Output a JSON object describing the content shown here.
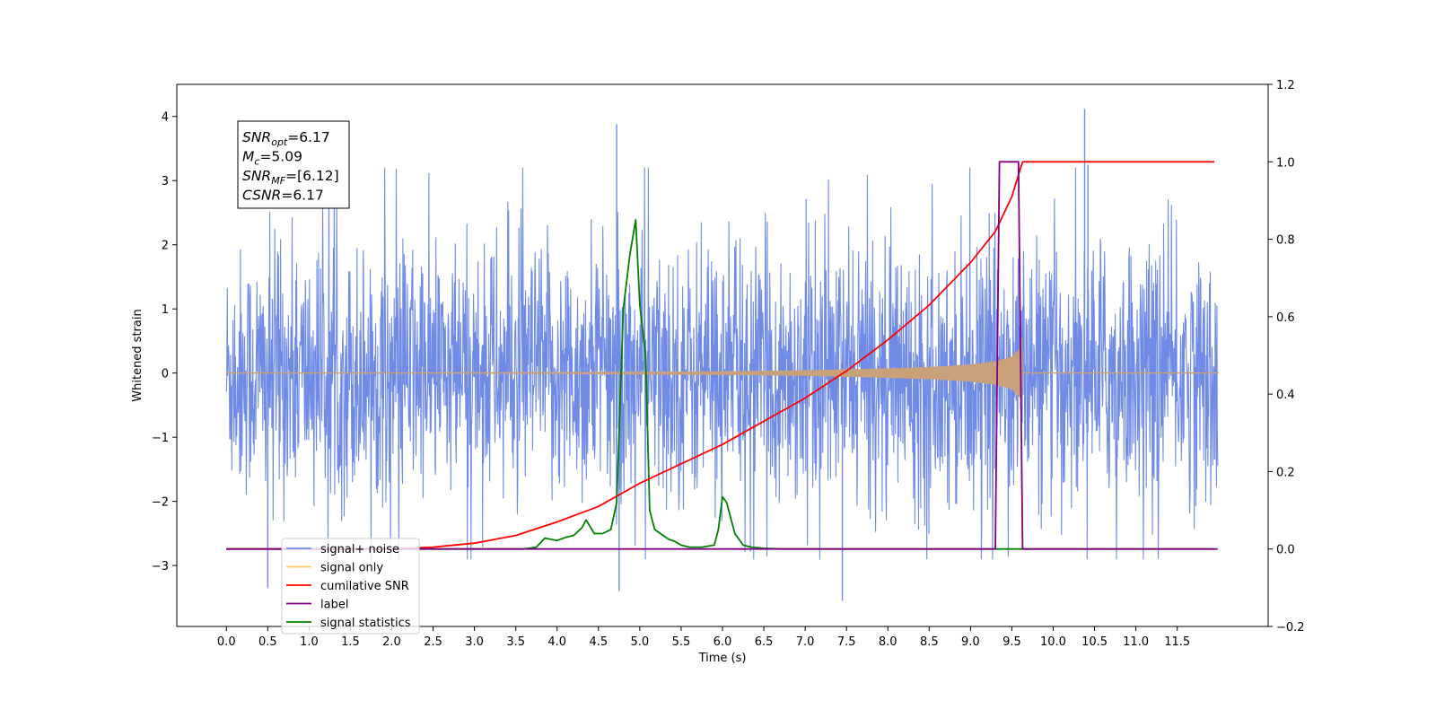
{
  "chart_data": {
    "type": "line",
    "xlabel": "Time (s)",
    "ylabel_left": "Whitened strain",
    "ylabel_right": "",
    "xlim": [
      -0.6,
      12.6
    ],
    "ylim_left": [
      -3.95,
      4.5
    ],
    "ylim_right": [
      -0.2,
      1.2
    ],
    "x_ticks": [
      0.0,
      0.5,
      1.0,
      1.5,
      2.0,
      2.5,
      3.0,
      3.5,
      4.0,
      4.5,
      5.0,
      5.5,
      6.0,
      6.5,
      7.0,
      7.5,
      8.0,
      8.5,
      9.0,
      9.5,
      10.0,
      10.5,
      11.0,
      11.5
    ],
    "x_tick_labels": [
      "0.0",
      "0.5",
      "1.0",
      "1.5",
      "2.0",
      "2.5",
      "3.0",
      "3.5",
      "4.0",
      "4.5",
      "5.0",
      "5.5",
      "6.0",
      "6.5",
      "7.0",
      "7.5",
      "8.0",
      "8.5",
      "9.0",
      "9.5",
      "10.0",
      "10.5",
      "11.0",
      "11.5"
    ],
    "y_left_ticks": [
      -3,
      -2,
      -1,
      0,
      1,
      2,
      3,
      4
    ],
    "y_left_tick_labels": [
      "−3",
      "−2",
      "−1",
      "0",
      "1",
      "2",
      "3",
      "4"
    ],
    "y_right_ticks": [
      -0.2,
      0.0,
      0.2,
      0.4,
      0.6,
      0.8,
      1.0,
      1.2
    ],
    "y_right_tick_labels": [
      "−0.2",
      "0.0",
      "0.2",
      "0.4",
      "0.6",
      "0.8",
      "1.0",
      "1.2"
    ],
    "grid": false,
    "legend_position": "lower-left",
    "annotation": {
      "lines": [
        {
          "base": "SNR",
          "sub": "opt",
          "value": "=6.17"
        },
        {
          "base": "M",
          "sub": "c",
          "value": "=5.09"
        },
        {
          "base": "SNR",
          "sub": "MF",
          "value": "=[6.12]"
        },
        {
          "base": "CSNR",
          "sub": "",
          "value": "=6.17"
        }
      ]
    },
    "series": [
      {
        "name": "signal+ noise",
        "axis": "left",
        "color": "#6f8be6",
        "kind": "noise-band",
        "x_range": [
          0.0,
          11.99
        ],
        "typical_amplitude": 1.4,
        "extreme_values": [
          {
            "x": 0.5,
            "y": -3.35
          },
          {
            "x": 4.72,
            "y": 3.88
          },
          {
            "x": 4.75,
            "y": -3.4
          },
          {
            "x": 7.45,
            "y": -3.55
          },
          {
            "x": 10.38,
            "y": 4.12
          },
          {
            "x": 10.42,
            "y": 3.25
          }
        ]
      },
      {
        "name": "signal only",
        "axis": "left",
        "color": "#c8a07a",
        "kind": "chirp-envelope",
        "x": [
          0.0,
          2.0,
          4.0,
          6.0,
          7.0,
          8.0,
          8.5,
          9.0,
          9.3,
          9.5,
          9.6,
          9.62,
          9.63,
          12.0
        ],
        "amplitude": [
          0.002,
          0.004,
          0.01,
          0.025,
          0.04,
          0.07,
          0.09,
          0.13,
          0.18,
          0.25,
          0.38,
          0.55,
          0.0,
          0.0
        ]
      },
      {
        "name": "cumilative SNR",
        "axis": "right",
        "color": "#ff0000",
        "x": [
          0.0,
          2.0,
          2.5,
          3.0,
          3.5,
          4.0,
          4.5,
          5.0,
          5.5,
          6.0,
          6.5,
          7.0,
          7.5,
          8.0,
          8.5,
          9.0,
          9.3,
          9.5,
          9.6,
          9.63,
          11.95
        ],
        "values": [
          0.0,
          0.0,
          0.005,
          0.015,
          0.035,
          0.07,
          0.11,
          0.17,
          0.22,
          0.27,
          0.33,
          0.39,
          0.46,
          0.54,
          0.63,
          0.74,
          0.82,
          0.91,
          0.98,
          1.0,
          1.0
        ]
      },
      {
        "name": "label",
        "axis": "right",
        "color": "#800080",
        "x": [
          0.0,
          9.3,
          9.35,
          9.58,
          9.63,
          11.99
        ],
        "values": [
          0.0,
          0.0,
          1.0,
          1.0,
          0.0,
          0.0
        ]
      },
      {
        "name": "signal statistics",
        "axis": "right",
        "color": "#008000",
        "x": [
          0.0,
          3.6,
          3.75,
          3.85,
          4.0,
          4.1,
          4.2,
          4.3,
          4.35,
          4.45,
          4.55,
          4.65,
          4.72,
          4.8,
          4.88,
          4.95,
          5.0,
          5.07,
          5.12,
          5.18,
          5.25,
          5.35,
          5.42,
          5.5,
          5.6,
          5.75,
          5.9,
          5.95,
          6.0,
          6.05,
          6.15,
          6.25,
          6.35,
          6.5,
          6.7,
          7.0,
          11.95
        ],
        "values": [
          0.0,
          0.0,
          0.005,
          0.028,
          0.022,
          0.03,
          0.035,
          0.055,
          0.075,
          0.04,
          0.04,
          0.05,
          0.12,
          0.62,
          0.76,
          0.85,
          0.63,
          0.5,
          0.1,
          0.05,
          0.04,
          0.025,
          0.02,
          0.01,
          0.005,
          0.005,
          0.01,
          0.05,
          0.135,
          0.12,
          0.04,
          0.01,
          0.005,
          0.002,
          0.0,
          0.0,
          0.0
        ]
      }
    ],
    "legend": [
      {
        "label": "signal+ noise",
        "color": "#6f8be6"
      },
      {
        "label": "signal only",
        "color": "#ffc864"
      },
      {
        "label": "cumilative SNR",
        "color": "#ff0000"
      },
      {
        "label": "label",
        "color": "#800080"
      },
      {
        "label": "signal statistics",
        "color": "#008000"
      }
    ]
  }
}
